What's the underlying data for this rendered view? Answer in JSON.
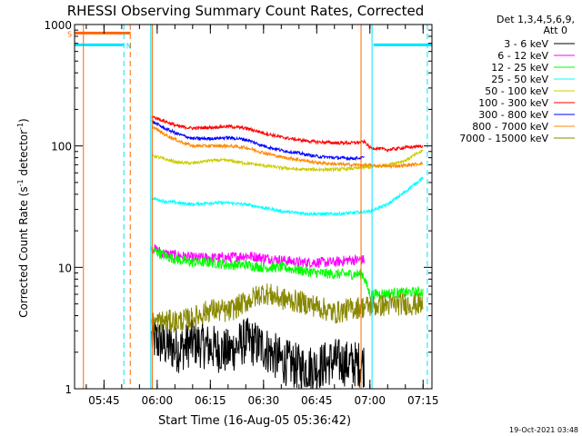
{
  "chart_data": {
    "type": "line",
    "title": "RHESSI Observing Summary Count Rates, Corrected",
    "xlabel": "Start Time (16-Aug-05 05:36:42)",
    "ylabel": "Corrected Count Rate (s",
    "ylabel_sup1": "-1",
    "ylabel_mid": " detector",
    "ylabel_sup2": "-1",
    "ylabel_end": ")",
    "x_ticks": [
      "05:45",
      "06:00",
      "06:15",
      "06:30",
      "06:45",
      "07:00",
      "07:15"
    ],
    "x_tick_minutes": [
      45,
      60,
      75,
      90,
      105,
      120,
      135
    ],
    "xlim_minutes": [
      36.7,
      137.5
    ],
    "y_scale": "log",
    "ylim": [
      1,
      1000
    ],
    "y_ticks": [
      1,
      10,
      100,
      1000
    ],
    "y_tick_labels": [
      "1",
      "10",
      "100",
      "1000"
    ],
    "legend_header": [
      "Det 1,3,4,5,6,9,",
      "Att 0"
    ],
    "legend_position": "right",
    "series": [
      {
        "name": "3 - 6 keV",
        "color": "#000000",
        "x": [
          58.5,
          62,
          66,
          70,
          75,
          80,
          85,
          90,
          95,
          100,
          105,
          110,
          114,
          118.5
        ],
        "values": [
          2.6,
          2.3,
          2.1,
          2.4,
          2.2,
          2.0,
          2.5,
          2.2,
          1.7,
          1.5,
          1.5,
          1.7,
          1.6,
          1.6
        ]
      },
      {
        "name": "6 - 12 keV",
        "color": "#ff00ff",
        "x": [
          58.5,
          62,
          66,
          70,
          75,
          80,
          85,
          90,
          95,
          100,
          105,
          110,
          114,
          118.5
        ],
        "values": [
          14.5,
          13,
          12.5,
          12,
          12,
          12,
          12.5,
          12,
          11.5,
          11,
          11,
          11,
          11.5,
          11.5
        ]
      },
      {
        "name": "12 - 25 keV",
        "color": "#00ff00",
        "x": [
          58.5,
          62,
          66,
          70,
          75,
          80,
          85,
          90,
          95,
          100,
          105,
          110,
          114,
          118,
          120,
          125,
          130,
          135
        ],
        "values": [
          14,
          12.5,
          11.5,
          11,
          11,
          10.5,
          10.5,
          10,
          10,
          9.5,
          9,
          8.8,
          8.8,
          8.8,
          6.0,
          6.1,
          6.2,
          6.3
        ]
      },
      {
        "name": "25 - 50 keV",
        "color": "#00ffff",
        "x": [
          58.5,
          62,
          66,
          70,
          75,
          80,
          85,
          90,
          95,
          100,
          105,
          110,
          115,
          120,
          125,
          130,
          135
        ],
        "values": [
          37,
          35,
          34,
          33,
          34,
          34,
          33,
          31,
          29,
          28,
          27.5,
          27.5,
          28,
          29,
          33,
          42,
          55
        ]
      },
      {
        "name": "50 - 100 keV",
        "color": "#cccc00",
        "x": [
          58.5,
          62,
          66,
          70,
          75,
          80,
          85,
          90,
          95,
          100,
          105,
          110,
          115,
          120,
          125,
          130,
          135
        ],
        "values": [
          84,
          78,
          73,
          72,
          76,
          76,
          72,
          69,
          66,
          64,
          64,
          64,
          65,
          67,
          70,
          76,
          92
        ]
      },
      {
        "name": "100 - 300 keV",
        "color": "#ff0000",
        "x": [
          58.5,
          62,
          66,
          70,
          75,
          80,
          85,
          90,
          95,
          100,
          105,
          110,
          115,
          118.5,
          120,
          125,
          130,
          135
        ],
        "values": [
          175,
          160,
          145,
          140,
          142,
          145,
          140,
          128,
          118,
          112,
          108,
          106,
          106,
          108,
          97,
          93,
          97,
          100
        ]
      },
      {
        "name": "300 - 800 keV",
        "color": "#0000ff",
        "x": [
          58.5,
          62,
          66,
          70,
          75,
          80,
          85,
          90,
          95,
          100,
          105,
          110,
          115,
          118.5
        ],
        "values": [
          160,
          140,
          125,
          115,
          115,
          117,
          113,
          100,
          92,
          87,
          82,
          80,
          79,
          80
        ]
      },
      {
        "name": "800 - 7000 keV",
        "color": "#ff8800",
        "x": [
          58.5,
          62,
          66,
          70,
          75,
          80,
          85,
          90,
          95,
          100,
          105,
          110,
          115,
          120,
          125,
          130,
          135
        ],
        "values": [
          145,
          125,
          110,
          100,
          100,
          100,
          97,
          88,
          81,
          77,
          73,
          71,
          70,
          69,
          68,
          69,
          72
        ]
      },
      {
        "name": "7000 - 15000 keV",
        "color": "#888800",
        "x": [
          58.5,
          62,
          66,
          70,
          75,
          80,
          85,
          90,
          95,
          100,
          105,
          110,
          115,
          120,
          125,
          130,
          135
        ],
        "values": [
          3.5,
          3.6,
          3.6,
          3.8,
          4.5,
          4.3,
          5.2,
          6.2,
          5.5,
          5.2,
          4.8,
          4.2,
          4.6,
          4.8,
          4.9,
          5.0,
          4.9
        ]
      }
    ],
    "flags": [
      {
        "label": "S",
        "color": "#ff6600",
        "y_value": 850,
        "x_start": 36.7,
        "x_end": 52.5
      },
      {
        "label": "N",
        "color": "#00e5ff",
        "y_value": 680,
        "x_start": 36.7,
        "x_end": 50.5
      },
      {
        "label": "",
        "color": "#00e5ff",
        "y_value": 680,
        "x_start": 121,
        "x_end": 137.5
      }
    ],
    "vertical_lines": [
      {
        "x": 39.2,
        "color": "#ff6600",
        "style": "solid"
      },
      {
        "x": 52.4,
        "color": "#ff6600",
        "style": "dashed"
      },
      {
        "x": 50.6,
        "color": "#00e5ff",
        "style": "dashed"
      },
      {
        "x": 58.2,
        "color": "#00e5ff",
        "style": "solid"
      },
      {
        "x": 58.6,
        "color": "#ff6600",
        "style": "solid"
      },
      {
        "x": 117.5,
        "color": "#ff6600",
        "style": "solid"
      },
      {
        "x": 120.6,
        "color": "#00e5ff",
        "style": "solid"
      },
      {
        "x": 136.2,
        "color": "#00e5ff",
        "style": "dashed"
      }
    ],
    "timestamp": "19-Oct-2021 03:48"
  }
}
